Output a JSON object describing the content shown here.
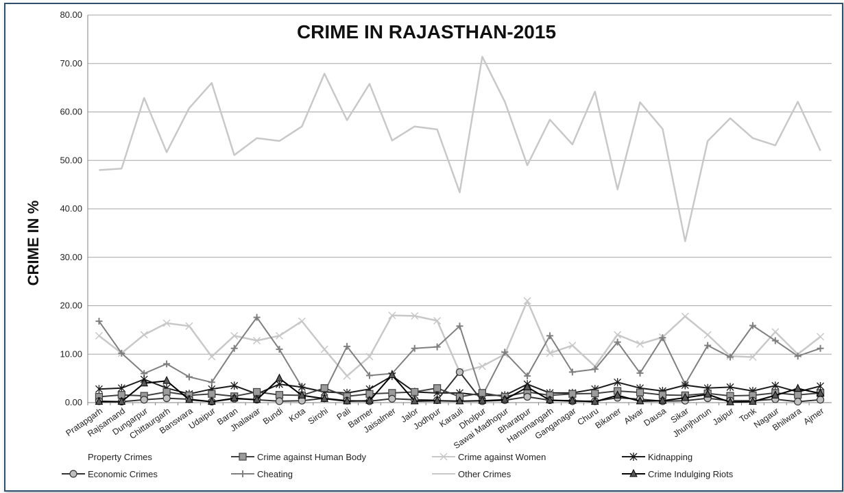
{
  "chart_data": {
    "type": "line",
    "title": "CRIME IN RAJASTHAN-2015",
    "xlabel": "",
    "ylabel": "CRIME IN %",
    "ylim": [
      0,
      80
    ],
    "yticks": [
      "0.00",
      "10.00",
      "20.00",
      "30.00",
      "40.00",
      "50.00",
      "60.00",
      "70.00",
      "80.00"
    ],
    "grid": "horizontal",
    "legend_position": "bottom",
    "categories": [
      "Pratapgarh",
      "Rajsamand",
      "Dungarpur",
      "Chittaurgarh",
      "Banswara",
      "Udaipur",
      "Baran",
      "Jhalawar",
      "Bundi",
      "Kota",
      "Sirohi",
      "Pali",
      "Barmer",
      "Jaisalmer",
      "Jalor",
      "Jodhpur",
      "Karauli",
      "Dholpur",
      "Sawai Madhopur",
      "Bharatpur",
      "Hanumangarh",
      "Ganganagar",
      "Churu",
      "Bikaner",
      "Alwar",
      "Dausa",
      "Sikar",
      "Jhunjhunun",
      "Jaipur",
      "Tonk",
      "Nagaur",
      "Bhilwara",
      "Ajmer"
    ],
    "series": [
      {
        "name": "Property Crimes",
        "color": "#000000",
        "marker": "none",
        "dash": "6,5",
        "values": [
          null,
          null,
          null,
          null,
          null,
          null,
          null,
          null,
          null,
          null,
          null,
          null,
          null,
          null,
          null,
          null,
          null,
          null,
          null,
          null,
          null,
          null,
          null,
          null,
          null,
          null,
          null,
          null,
          null,
          null,
          null,
          null,
          null
        ]
      },
      {
        "name": "Crime against Human Body",
        "color": "#404040",
        "marker": "square",
        "values": [
          1.2,
          1.6,
          1.4,
          2.2,
          1.5,
          1.8,
          1.3,
          2.2,
          1.6,
          1.5,
          3.0,
          1.3,
          1.8,
          2.0,
          2.2,
          3.0,
          1.2,
          2.0,
          1.2,
          2.2,
          1.5,
          1.8,
          1.9,
          2.4,
          2.1,
          1.6,
          1.5,
          1.9,
          1.4,
          1.5,
          2.0,
          1.6,
          2.0
        ]
      },
      {
        "name": "Crime against Women",
        "color": "#c8c8c8",
        "marker": "x",
        "values": [
          13.8,
          10.2,
          14.0,
          16.4,
          15.8,
          9.5,
          13.8,
          12.8,
          13.8,
          16.8,
          11.0,
          5.5,
          9.5,
          18.0,
          17.9,
          16.9,
          6.3,
          7.5,
          10.0,
          21.0,
          10.2,
          11.8,
          7.5,
          14.0,
          12.1,
          13.5,
          17.8,
          14.0,
          9.6,
          9.4,
          14.6,
          10.0,
          13.6
        ]
      },
      {
        "name": "Kidnapping",
        "color": "#1a1a1a",
        "marker": "star",
        "values": [
          2.8,
          3.0,
          4.8,
          3.0,
          1.8,
          2.8,
          3.5,
          1.8,
          3.8,
          3.2,
          2.2,
          2.0,
          2.8,
          5.5,
          2.2,
          2.0,
          2.0,
          1.5,
          1.5,
          3.8,
          2.0,
          2.0,
          2.8,
          4.2,
          3.0,
          2.4,
          3.6,
          3.0,
          3.2,
          2.4,
          3.5,
          2.2,
          3.4
        ]
      },
      {
        "name": "Economic Crimes",
        "color": "#333333",
        "marker": "circle",
        "values": [
          0.3,
          0.2,
          0.6,
          0.9,
          0.7,
          0.2,
          0.8,
          0.6,
          0.3,
          0.4,
          0.9,
          0.4,
          0.3,
          0.8,
          0.6,
          0.5,
          6.3,
          0.3,
          0.5,
          1.2,
          0.5,
          0.3,
          0.3,
          1.0,
          0.7,
          0.3,
          0.4,
          0.9,
          0.4,
          0.4,
          0.7,
          0.2,
          0.6
        ]
      },
      {
        "name": "Cheating",
        "color": "#7f7f7f",
        "marker": "plus",
        "values": [
          16.8,
          10.2,
          6.0,
          8.0,
          5.3,
          4.2,
          11.2,
          17.6,
          11.0,
          3.2,
          2.2,
          11.6,
          5.6,
          6.0,
          11.2,
          11.5,
          15.8,
          1.4,
          10.4,
          5.5,
          13.8,
          6.3,
          6.9,
          12.5,
          6.1,
          13.4,
          3.8,
          11.8,
          9.4,
          15.9,
          12.8,
          9.6,
          11.2
        ]
      },
      {
        "name": "Other Crimes",
        "color": "#c8c8c8",
        "marker": "none",
        "values": [
          48.0,
          48.3,
          62.9,
          51.7,
          60.8,
          66.0,
          51.1,
          54.6,
          54.0,
          57.0,
          67.9,
          58.3,
          65.8,
          54.1,
          57.0,
          56.4,
          43.4,
          71.4,
          62.1,
          49.0,
          58.4,
          53.3,
          64.2,
          44.0,
          62.0,
          56.5,
          33.3,
          54.0,
          58.7,
          54.6,
          53.1,
          62.1,
          52.0
        ]
      },
      {
        "name": "Crime Indulging Riots",
        "color": "#000000",
        "marker": "triangle",
        "values": [
          0.2,
          0.2,
          4.0,
          4.5,
          0.6,
          0.2,
          0.9,
          0.6,
          5.0,
          1.5,
          0.8,
          0.3,
          0.4,
          5.7,
          0.3,
          0.4,
          0.3,
          0.4,
          0.6,
          3.2,
          0.5,
          0.4,
          0.2,
          1.5,
          0.3,
          0.4,
          1.0,
          1.7,
          0.1,
          0.2,
          1.5,
          2.9,
          1.9
        ]
      }
    ]
  }
}
